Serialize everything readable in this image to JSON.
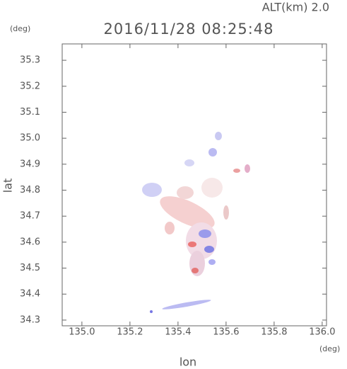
{
  "chart_data": {
    "type": "field",
    "title": "2016/11/28 08:25:48",
    "annotation": "ALT(km) 2.0",
    "y_unit": "(deg)",
    "x_unit": "(deg)",
    "xlabel": "lon",
    "ylabel": "lat",
    "xlim": [
      134.918,
      136.018
    ],
    "ylim": [
      34.278,
      35.363
    ],
    "xticks": [
      {
        "value": 135,
        "label": "135.0"
      },
      135.2,
      135.4,
      135.6,
      135.8,
      {
        "value": 136,
        "label": "136.0"
      }
    ],
    "yticks": [
      34.3,
      34.4,
      34.5,
      34.6,
      34.7,
      34.8,
      34.9,
      {
        "value": 35,
        "label": "35.0"
      },
      35.1,
      35.2,
      35.3
    ]
  }
}
